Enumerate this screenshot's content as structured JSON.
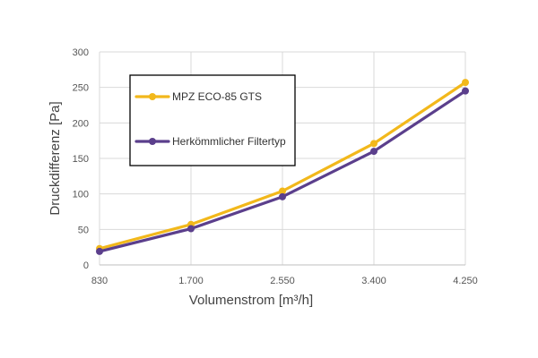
{
  "chart_data": {
    "type": "line",
    "xlabel": "Volumenstrom [m³/h]",
    "ylabel": "Druckdifferenz [Pa]",
    "categories": [
      "830",
      "1.700",
      "2.550",
      "3.400",
      "4.250"
    ],
    "ylim": [
      0,
      300
    ],
    "yticks": [
      0,
      50,
      100,
      150,
      200,
      250,
      300
    ],
    "grid": true,
    "legend_position": "top-left",
    "series": [
      {
        "name": "MPZ ECO-85 GTS",
        "color": "#f2b81b",
        "values": [
          23,
          57,
          104,
          171,
          257
        ]
      },
      {
        "name": "Herkömmlicher Filtertyp",
        "color": "#5b3f8c",
        "values": [
          19,
          51,
          96,
          160,
          245
        ]
      }
    ]
  }
}
